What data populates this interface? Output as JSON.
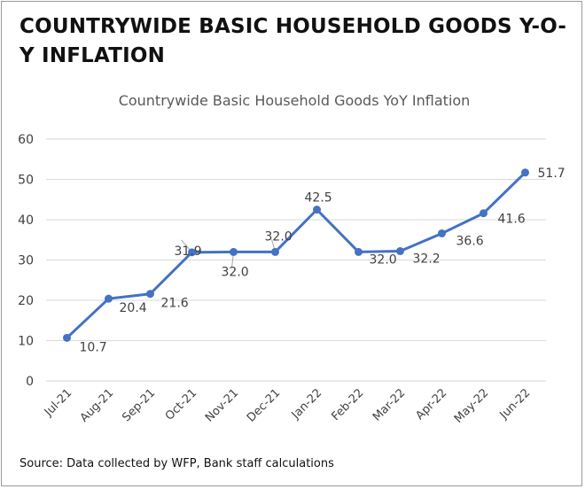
{
  "heading": "COUNTRYWIDE BASIC HOUSEHOLD GOODS Y-O-Y INFLATION",
  "source": "Source: Data collected by WFP, Bank staff calculations",
  "colors": {
    "line": "#4472C4",
    "grid": "#d9d9d9",
    "text": "#404040"
  },
  "chart_data": {
    "type": "line",
    "title": "Countrywide Basic Household Goods YoY Inflation",
    "xlabel": "",
    "ylabel": "",
    "categories": [
      "Jul-21",
      "Aug-21",
      "Sep-21",
      "Oct-21",
      "Nov-21",
      "Dec-21",
      "Jan-22",
      "Feb-22",
      "Mar-22",
      "Apr-22",
      "May-22",
      "Jun-22"
    ],
    "series": [
      {
        "values": [
          10.7,
          20.4,
          21.6,
          31.9,
          32.0,
          32.0,
          42.5,
          32.0,
          32.2,
          36.6,
          41.6,
          51.7
        ],
        "labels": [
          "10.7",
          "20.4",
          "21.6",
          "31.9",
          "32.0",
          "32.0",
          "42.5",
          "32.0",
          "32.2",
          "36.6",
          "41.6",
          "51.7"
        ]
      }
    ],
    "ylim": [
      0,
      60
    ],
    "yticks": [
      "0",
      "10",
      "20",
      "30",
      "40",
      "50",
      "60"
    ],
    "grid": true,
    "legend": "none"
  }
}
